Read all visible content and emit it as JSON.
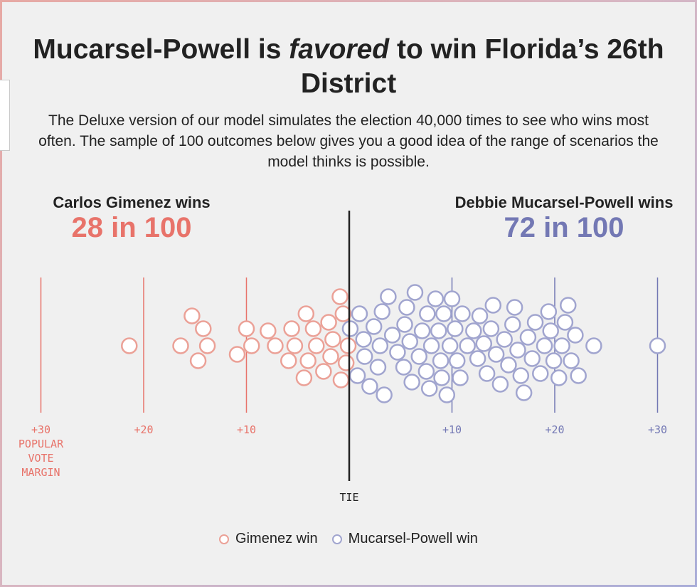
{
  "title_parts": {
    "before": "Mucarsel-Powell is",
    "emphasis": "favored",
    "after": "to win Florida’s 26th District"
  },
  "subtitle": "The Deluxe version of our model simulates the election 40,000 times to see who wins most often. The sample of 100 outcomes below gives you a good idea of the range of scenarios the model thinks is possible.",
  "colors": {
    "gimenez": "#e8736a",
    "gimenez_stroke": "#eba197",
    "mucarsel": "#7378b4",
    "mucarsel_stroke": "#a1a5cf",
    "tie_line": "#222222"
  },
  "left": {
    "label": "Carlos Gimenez wins",
    "count": "28 in 100"
  },
  "right": {
    "label": "Debbie Mucarsel-Powell wins",
    "count": "72 in 100"
  },
  "legend": {
    "gimenez": "Gimenez win",
    "mucarsel": "Mucarsel-Powell win"
  },
  "chart_data": {
    "type": "scatter",
    "title": "Mucarsel-Powell is favored to win Florida’s 26th District",
    "x_axis": {
      "label": "POPULAR VOTE MARGIN",
      "range": [
        -35,
        35
      ],
      "left_ticks": [
        {
          "value": -30,
          "label": "+30"
        },
        {
          "value": -20,
          "label": "+20"
        },
        {
          "value": -10,
          "label": "+10"
        }
      ],
      "right_ticks": [
        {
          "value": 10,
          "label": "+10"
        },
        {
          "value": 20,
          "label": "+20"
        },
        {
          "value": 30,
          "label": "+30"
        }
      ],
      "tie_label": "TIE"
    },
    "gridlines": true,
    "legend_position": "bottom-center",
    "series": [
      {
        "name": "Gimenez win",
        "count": 28,
        "x": [
          -21.4,
          -16.4,
          -15.3,
          -14.7,
          -14.2,
          -13.8,
          -10.9,
          -10.0,
          -9.5,
          -7.9,
          -7.2,
          -5.9,
          -5.6,
          -5.3,
          -4.4,
          -4.2,
          -4.0,
          -3.5,
          -3.2,
          -2.5,
          -2.0,
          -1.8,
          -1.6,
          -0.9,
          -0.8,
          -0.6,
          -0.3,
          -0.1
        ]
      },
      {
        "name": "Mucarsel-Powell win",
        "count": 72,
        "x": [
          0.1,
          0.8,
          1.0,
          1.4,
          1.5,
          2.0,
          2.4,
          2.8,
          3.0,
          3.2,
          3.4,
          3.8,
          4.2,
          4.7,
          5.3,
          5.4,
          5.6,
          5.9,
          6.1,
          6.4,
          6.8,
          7.1,
          7.5,
          7.6,
          7.8,
          8.0,
          8.4,
          8.7,
          8.9,
          9.0,
          9.2,
          9.5,
          9.8,
          10.0,
          10.3,
          10.5,
          10.8,
          11.0,
          11.5,
          12.1,
          12.5,
          12.7,
          13.1,
          13.4,
          13.8,
          14.0,
          14.3,
          14.7,
          15.1,
          15.5,
          15.9,
          16.1,
          16.4,
          16.7,
          17.0,
          17.4,
          17.8,
          18.1,
          18.6,
          19.0,
          19.4,
          19.6,
          19.9,
          20.4,
          20.7,
          21.0,
          21.3,
          21.6,
          22.0,
          22.3,
          23.8,
          30.0
        ]
      }
    ]
  }
}
